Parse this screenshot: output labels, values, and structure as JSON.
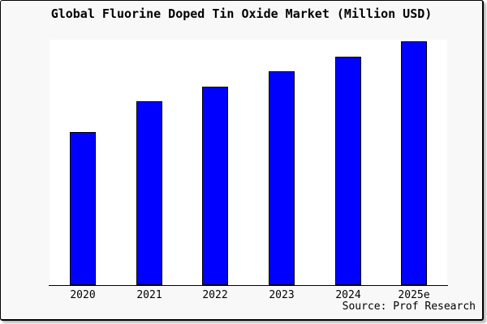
{
  "title": "Global Fluorine Doped Tin Oxide Market (Million USD)",
  "source_note": "Source: Prof Research",
  "colors": {
    "bar_fill": "#0000ff",
    "bar_border": "#000000",
    "page_background": "#f8f8f8",
    "plot_background": "#ffffff",
    "frame_border": "#000000",
    "text": "#000000"
  },
  "chart_data": {
    "type": "bar",
    "title": "Global Fluorine Doped Tin Oxide Market (Million USD)",
    "categories": [
      "2020",
      "2021",
      "2022",
      "2023",
      "2024",
      "2025e"
    ],
    "values": [
      62.8,
      75.4,
      81.4,
      87.7,
      93.7,
      100
    ],
    "values_unit": "relative height, percent of tallest bar (2025e); no numeric y-axis shown in image",
    "xlabel": "",
    "ylabel": "",
    "y_axis_ticks": "none",
    "grid": false,
    "legend": false,
    "bar_color": "#0000ff",
    "bar_border_color": "#000000",
    "annotation": "Source: Prof Research"
  }
}
